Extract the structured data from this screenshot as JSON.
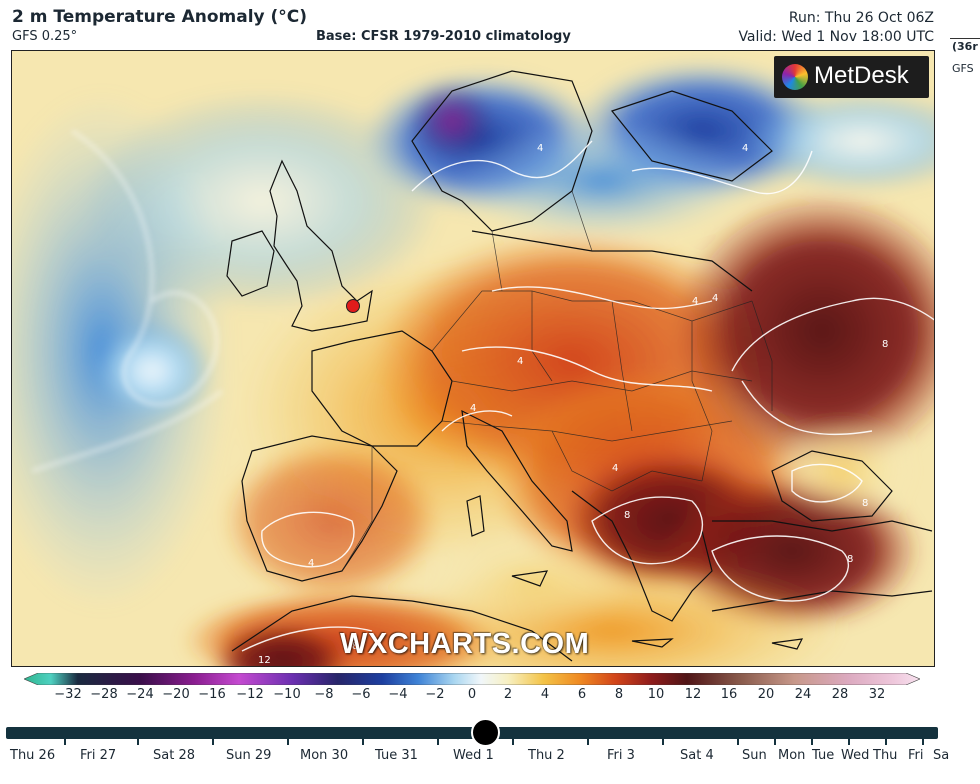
{
  "header": {
    "title": "2 m Temperature Anomaly (°C)",
    "model": "GFS 0.25°",
    "base": "Base: CFSR 1979-2010 climatology",
    "run": "Run: Thu 26 Oct 06Z",
    "valid": "Valid: Wed 1 Nov 18:00 UTC"
  },
  "side_panel": {
    "hours": "(36r",
    "model": "GFS"
  },
  "logo": {
    "text": "MetDesk",
    "icon": "metdesk-logo-icon"
  },
  "watermark": "WXCHARTS.COM",
  "map": {
    "marker": "red-location-dot",
    "contour_labels": [
      "4",
      "4",
      "4",
      "4",
      "4",
      "4",
      "4",
      "4",
      "8",
      "8",
      "8",
      "8",
      "8",
      "12"
    ]
  },
  "colorbar": {
    "ticks": [
      "−32",
      "−28",
      "−24",
      "−20",
      "−16",
      "−12",
      "−10",
      "−8",
      "−6",
      "−4",
      "−2",
      "0",
      "2",
      "4",
      "6",
      "8",
      "10",
      "12",
      "16",
      "20",
      "24",
      "28",
      "32"
    ],
    "colors": [
      "#2fb58f",
      "#4ed0c0",
      "#1a2a40",
      "#3a0e4a",
      "#8a1d90",
      "#c44ad0",
      "#6a2fb0",
      "#27256a",
      "#1d3fa0",
      "#3f83d6",
      "#a9d6f0",
      "#f1f7fa",
      "#f7f0c2",
      "#f3c347",
      "#ef8a22",
      "#d2451a",
      "#8f1c1c",
      "#501517",
      "#8a5b4c",
      "#c7988a",
      "#dcaac0",
      "#eec7db",
      "#f8e2ef"
    ]
  },
  "timeline": {
    "labels": [
      "Thu 26",
      "Fri 27",
      "Sat 28",
      "Sun 29",
      "Mon 30",
      "Tue 31",
      "Wed 1",
      "Thu 2",
      "Fri 3",
      "Sat 4",
      "Sun",
      "Mon",
      "Tue",
      "Wed",
      "Thu",
      "Fri",
      "Sa"
    ],
    "selected": "Wed 1"
  }
}
